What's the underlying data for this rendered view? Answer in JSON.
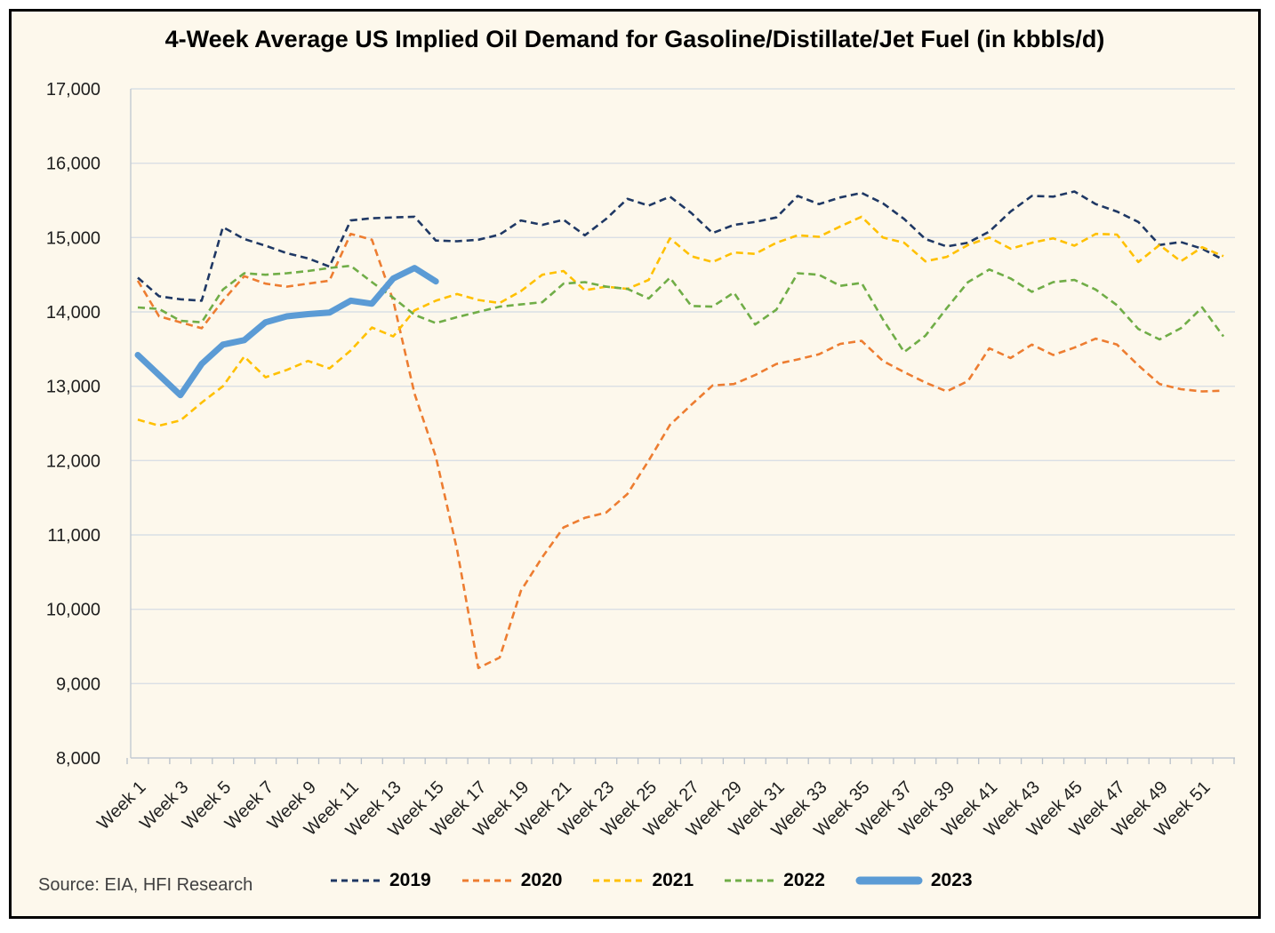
{
  "source": {
    "label": "Source: EIA, HFI Research"
  },
  "colors": {
    "background": "#fdf8ec",
    "frame_border": "#000000",
    "gridline": "#dadfe5",
    "axis_line": "#c3cad3",
    "tick_mark": "#b9c1ca",
    "axis_text": "#1f1f1f",
    "source_text": "#404040"
  },
  "chart_data": {
    "type": "line",
    "title": "4-Week Average US Implied Oil Demand for Gasoline/Distillate/Jet Fuel (in kbbls/d)",
    "xlabel": "",
    "ylabel": "",
    "x_count": 52,
    "x_tick_labels": [
      "Week 1",
      "Week 3",
      "Week 5",
      "Week 7",
      "Week 9",
      "Week 11",
      "Week 13",
      "Week 15",
      "Week 17",
      "Week 19",
      "Week 21",
      "Week 23",
      "Week 25",
      "Week 27",
      "Week 29",
      "Week 31",
      "Week 33",
      "Week 35",
      "Week 37",
      "Week 39",
      "Week 41",
      "Week 43",
      "Week 45",
      "Week 47",
      "Week 49",
      "Week 51"
    ],
    "ylim": [
      8000,
      17000
    ],
    "y_ticks": [
      8000,
      9000,
      10000,
      11000,
      12000,
      13000,
      14000,
      15000,
      16000,
      17000
    ],
    "y_tick_labels": [
      "8,000",
      "9,000",
      "10,000",
      "11,000",
      "12,000",
      "13,000",
      "14,000",
      "15,000",
      "16,000",
      "17,000"
    ],
    "grid": "horizontal",
    "legend_position": "bottom",
    "series": [
      {
        "name": "2019",
        "color": "#1F3864",
        "style": "dashed",
        "width": 2.6,
        "values": [
          14460,
          14210,
          14170,
          14150,
          15140,
          14980,
          14890,
          14790,
          14720,
          14610,
          15230,
          15260,
          15270,
          15280,
          14960,
          14950,
          14970,
          15040,
          15230,
          15170,
          15240,
          15030,
          15250,
          15520,
          15430,
          15550,
          15330,
          15060,
          15170,
          15210,
          15270,
          15560,
          15450,
          15540,
          15600,
          15460,
          15250,
          14980,
          14880,
          14930,
          15080,
          15350,
          15560,
          15550,
          15620,
          15450,
          15350,
          15210,
          14900,
          14940,
          14850,
          14700
        ]
      },
      {
        "name": "2020",
        "color": "#ED7D31",
        "style": "dashed",
        "width": 2.6,
        "values": [
          14420,
          13940,
          13860,
          13780,
          14150,
          14480,
          14380,
          14340,
          14380,
          14420,
          15050,
          14970,
          14150,
          12900,
          12050,
          10800,
          9210,
          9350,
          10250,
          10700,
          11100,
          11230,
          11300,
          11550,
          12000,
          12480,
          12750,
          13010,
          13030,
          13150,
          13300,
          13360,
          13430,
          13570,
          13610,
          13340,
          13190,
          13050,
          12930,
          13070,
          13510,
          13380,
          13560,
          13420,
          13520,
          13640,
          13560,
          13280,
          13030,
          12960,
          12930,
          12940
        ]
      },
      {
        "name": "2021",
        "color": "#FFC000",
        "style": "dashed",
        "width": 2.6,
        "values": [
          12550,
          12470,
          12540,
          12780,
          13000,
          13400,
          13120,
          13220,
          13340,
          13240,
          13480,
          13790,
          13670,
          14020,
          14150,
          14240,
          14160,
          14120,
          14280,
          14500,
          14550,
          14290,
          14340,
          14310,
          14430,
          14990,
          14750,
          14670,
          14800,
          14780,
          14930,
          15030,
          15010,
          15150,
          15280,
          15000,
          14930,
          14680,
          14740,
          14900,
          15000,
          14850,
          14930,
          14990,
          14890,
          15050,
          15040,
          14670,
          14900,
          14680,
          14870,
          14750
        ]
      },
      {
        "name": "2022",
        "color": "#70AD47",
        "style": "dashed",
        "width": 2.6,
        "values": [
          14060,
          14040,
          13880,
          13860,
          14300,
          14520,
          14500,
          14520,
          14550,
          14590,
          14620,
          14400,
          14190,
          13960,
          13850,
          13930,
          14000,
          14070,
          14100,
          14130,
          14380,
          14400,
          14340,
          14310,
          14180,
          14460,
          14080,
          14070,
          14260,
          13830,
          14030,
          14520,
          14500,
          14350,
          14390,
          13900,
          13460,
          13680,
          14050,
          14400,
          14570,
          14450,
          14270,
          14400,
          14430,
          14300,
          14090,
          13770,
          13630,
          13780,
          14060,
          13670
        ]
      },
      {
        "name": "2023",
        "color": "#5B9BD5",
        "style": "solid",
        "width": 7,
        "values": [
          13420,
          13150,
          12880,
          13300,
          13560,
          13620,
          13860,
          13940,
          13970,
          13990,
          14150,
          14110,
          14450,
          14590,
          14410
        ]
      }
    ]
  }
}
